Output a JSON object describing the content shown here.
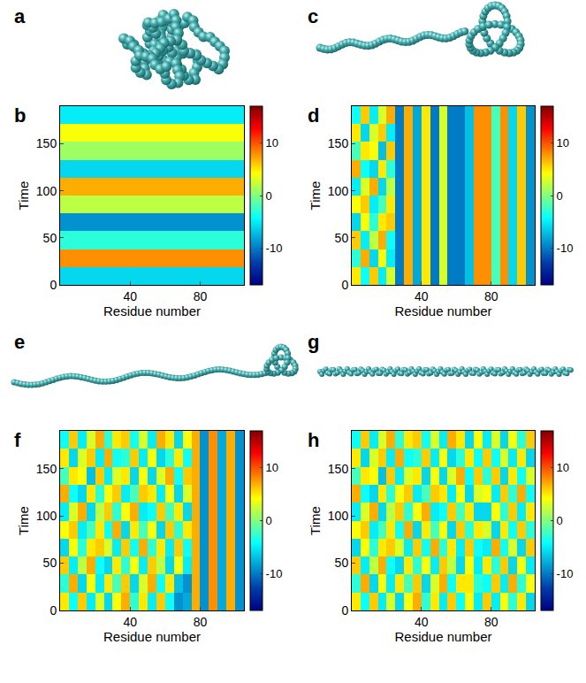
{
  "chart_data": [
    {
      "type": "heatmap",
      "annotations": [
        "a",
        "b"
      ],
      "x_label": "Residue number",
      "y_label": "Time",
      "color": "Jet",
      "x": [
        2.5,
        7.5,
        12.5,
        17.5,
        22.5,
        27.5,
        32.5,
        37.5,
        42.5,
        47.5,
        52.5,
        57.5,
        62.5,
        67.5,
        72.5,
        77.5,
        82.5,
        87.5,
        92.5,
        97.5,
        102.5
      ],
      "y": [
        9.5,
        28.5,
        47.5,
        66.5,
        85.5,
        104.5,
        123.5,
        142.5,
        161.5,
        180.5
      ],
      "z": [
        [
          -6,
          -6,
          -6,
          -6,
          -6,
          -6,
          -6,
          -6,
          -6,
          -6,
          -6,
          -6,
          -6,
          -6,
          -6,
          -6,
          -6,
          -6,
          -6,
          -6,
          -6
        ],
        [
          8,
          8,
          8,
          8,
          8,
          8,
          8,
          8,
          8,
          8,
          8,
          8,
          8,
          8,
          8,
          8,
          8,
          8,
          8,
          8,
          8
        ],
        [
          -3,
          -3,
          -3,
          -3,
          -3,
          -3,
          -3,
          -3,
          -3,
          -3,
          -3,
          -3,
          -3,
          -3,
          -3,
          -3,
          -3,
          -3,
          -3,
          -3,
          -3
        ],
        [
          -9,
          -9,
          -9,
          -9,
          -9,
          -9,
          -9,
          -9,
          -9,
          -9,
          -9,
          -9,
          -9,
          -9,
          -9,
          -9,
          -9,
          -9,
          -9,
          -9,
          -9
        ],
        [
          2,
          2,
          2,
          2,
          2,
          2,
          2,
          2,
          2,
          2,
          2,
          2,
          2,
          2,
          2,
          2,
          2,
          2,
          2,
          2,
          2
        ],
        [
          7,
          7,
          7,
          7,
          7,
          7,
          7,
          7,
          7,
          7,
          7,
          7,
          7,
          7,
          7,
          7,
          7,
          7,
          7,
          7,
          7
        ],
        [
          -6,
          -6,
          -6,
          -6,
          -6,
          -6,
          -6,
          -6,
          -6,
          -6,
          -6,
          -6,
          -6,
          -6,
          -6,
          -6,
          -6,
          -6,
          -6,
          -6,
          -6
        ],
        [
          1,
          1,
          1,
          1,
          1,
          1,
          1,
          1,
          1,
          1,
          1,
          1,
          1,
          1,
          1,
          1,
          1,
          1,
          1,
          1,
          1
        ],
        [
          4,
          4,
          4,
          4,
          4,
          4,
          4,
          4,
          4,
          4,
          4,
          4,
          4,
          4,
          4,
          4,
          4,
          4,
          4,
          4,
          4
        ],
        [
          -5,
          -5,
          -5,
          -5,
          -5,
          -5,
          -5,
          -5,
          -5,
          -5,
          -5,
          -5,
          -5,
          -5,
          -5,
          -5,
          -5,
          -5,
          -5,
          -5,
          -5
        ]
      ],
      "xlim": [
        0,
        105
      ],
      "xticks": [
        40,
        80
      ],
      "ylim": [
        0,
        190
      ],
      "yticks": [
        0,
        50,
        100,
        150
      ],
      "colorbar_range": [
        -17,
        17
      ],
      "colorbar_ticks": [
        -10,
        0,
        10
      ]
    },
    {
      "type": "heatmap",
      "annotations": [
        "c",
        "d"
      ],
      "x_label": "Residue number",
      "y_label": "Time",
      "color": "Jet",
      "x": [
        2.5,
        7.5,
        12.5,
        17.5,
        22.5,
        27.5,
        32.5,
        37.5,
        42.5,
        47.5,
        52.5,
        57.5,
        62.5,
        67.5,
        72.5,
        77.5,
        82.5,
        87.5,
        92.5,
        97.5,
        102.5
      ],
      "y": [
        9.5,
        28.5,
        47.5,
        66.5,
        85.5,
        104.5,
        123.5,
        142.5,
        161.5,
        180.5
      ],
      "z": [
        [
          5,
          -4,
          6,
          -5,
          3,
          -10,
          7,
          -8,
          5,
          -10,
          3,
          -10,
          -10,
          -7,
          8,
          8,
          -2,
          8,
          -6,
          6,
          -9
        ],
        [
          -3,
          7,
          -6,
          4,
          -5,
          -10,
          7,
          -8,
          5,
          -10,
          3,
          -10,
          -10,
          -7,
          8,
          8,
          -2,
          8,
          -6,
          6,
          -9
        ],
        [
          6,
          -5,
          2,
          7,
          -4,
          -10,
          7,
          -8,
          5,
          -10,
          3,
          -10,
          -10,
          -7,
          8,
          8,
          -2,
          8,
          -6,
          6,
          -9
        ],
        [
          -6,
          4,
          -3,
          5,
          6,
          -10,
          7,
          -8,
          5,
          -10,
          3,
          -10,
          -10,
          -7,
          8,
          8,
          -2,
          8,
          -6,
          6,
          -9
        ],
        [
          4,
          6,
          -5,
          -2,
          5,
          -10,
          7,
          -8,
          5,
          -10,
          3,
          -10,
          -10,
          -7,
          8,
          8,
          -2,
          8,
          -6,
          6,
          -9
        ],
        [
          -5,
          3,
          7,
          -6,
          2,
          -10,
          7,
          -8,
          5,
          -10,
          3,
          -10,
          -10,
          -7,
          8,
          8,
          -2,
          8,
          -6,
          6,
          -9
        ],
        [
          7,
          -4,
          -6,
          5,
          -3,
          -10,
          7,
          -8,
          5,
          -10,
          3,
          -10,
          -10,
          -7,
          8,
          8,
          -2,
          8,
          -6,
          6,
          -9
        ],
        [
          -2,
          5,
          4,
          -7,
          6,
          -10,
          7,
          -8,
          5,
          -10,
          3,
          -10,
          -10,
          -7,
          8,
          8,
          -2,
          8,
          -6,
          6,
          -9
        ],
        [
          5,
          -6,
          3,
          6,
          -5,
          -10,
          7,
          -8,
          5,
          -10,
          3,
          -10,
          -10,
          -7,
          8,
          8,
          -2,
          8,
          -6,
          6,
          -9
        ],
        [
          -4,
          6,
          -5,
          3,
          7,
          -10,
          7,
          -8,
          5,
          -10,
          3,
          -10,
          -10,
          -7,
          8,
          8,
          -2,
          8,
          -6,
          6,
          -9
        ]
      ],
      "xlim": [
        0,
        105
      ],
      "xticks": [
        40,
        80
      ],
      "ylim": [
        0,
        190
      ],
      "yticks": [
        0,
        50,
        100,
        150
      ],
      "colorbar_range": [
        -17,
        17
      ],
      "colorbar_ticks": [
        -10,
        0,
        10
      ]
    },
    {
      "type": "heatmap",
      "annotations": [
        "e",
        "f"
      ],
      "x_label": "Residue number",
      "y_label": "Time",
      "color": "Jet",
      "x": [
        2.5,
        7.5,
        12.5,
        17.5,
        22.5,
        27.5,
        32.5,
        37.5,
        42.5,
        47.5,
        52.5,
        57.5,
        62.5,
        67.5,
        72.5,
        77.5,
        82.5,
        87.5,
        92.5,
        97.5,
        102.5
      ],
      "y": [
        9.5,
        28.5,
        47.5,
        66.5,
        85.5,
        104.5,
        123.5,
        142.5,
        161.5,
        180.5
      ],
      "z": [
        [
          5,
          -4,
          6,
          -5,
          3,
          -6,
          4,
          7,
          -3,
          5,
          -5,
          6,
          -4,
          -9,
          -8,
          7,
          -9,
          8,
          -8,
          7,
          -9
        ],
        [
          -3,
          7,
          -6,
          4,
          -5,
          5,
          -2,
          6,
          -6,
          3,
          7,
          -4,
          5,
          -7,
          -9,
          7,
          -9,
          8,
          -8,
          7,
          -9
        ],
        [
          6,
          -5,
          2,
          7,
          -4,
          -6,
          5,
          -3,
          4,
          -5,
          6,
          2,
          -6,
          4,
          -5,
          7,
          -9,
          8,
          -8,
          7,
          -9
        ],
        [
          -6,
          4,
          -3,
          5,
          6,
          3,
          -5,
          6,
          -4,
          7,
          -3,
          5,
          -5,
          6,
          -4,
          7,
          -9,
          8,
          -8,
          7,
          -9
        ],
        [
          4,
          6,
          -5,
          -2,
          5,
          -4,
          7,
          -6,
          5,
          -2,
          4,
          -6,
          6,
          -3,
          5,
          7,
          -9,
          8,
          -8,
          7,
          -9
        ],
        [
          -5,
          3,
          7,
          -6,
          2,
          6,
          -3,
          4,
          7,
          -5,
          -4,
          6,
          -2,
          5,
          -6,
          7,
          -9,
          8,
          -8,
          7,
          -9
        ],
        [
          7,
          -4,
          -6,
          5,
          -3,
          4,
          6,
          -5,
          -2,
          6,
          5,
          -5,
          4,
          -6,
          3,
          7,
          -9,
          8,
          -8,
          7,
          -9
        ],
        [
          -2,
          5,
          4,
          -7,
          6,
          -5,
          3,
          5,
          -6,
          4,
          -6,
          3,
          7,
          -4,
          6,
          7,
          -9,
          8,
          -8,
          7,
          -9
        ],
        [
          5,
          -6,
          3,
          6,
          -5,
          7,
          -4,
          -3,
          6,
          -5,
          4,
          -6,
          -3,
          5,
          -4,
          7,
          -9,
          8,
          -8,
          7,
          -9
        ],
        [
          -4,
          6,
          -5,
          3,
          7,
          -3,
          5,
          6,
          -4,
          3,
          -5,
          7,
          5,
          -6,
          4,
          7,
          -9,
          8,
          -8,
          7,
          -9
        ]
      ],
      "xlim": [
        0,
        105
      ],
      "xticks": [
        40,
        80
      ],
      "ylim": [
        0,
        190
      ],
      "yticks": [
        0,
        50,
        100,
        150
      ],
      "colorbar_range": [
        -17,
        17
      ],
      "colorbar_ticks": [
        -10,
        0,
        10
      ]
    },
    {
      "type": "heatmap",
      "annotations": [
        "g",
        "h"
      ],
      "x_label": "Residue number",
      "y_label": "Time",
      "color": "Jet",
      "x": [
        2.5,
        7.5,
        12.5,
        17.5,
        22.5,
        27.5,
        32.5,
        37.5,
        42.5,
        47.5,
        52.5,
        57.5,
        62.5,
        67.5,
        72.5,
        77.5,
        82.5,
        87.5,
        92.5,
        97.5,
        102.5
      ],
      "y": [
        9.5,
        28.5,
        47.5,
        66.5,
        85.5,
        104.5,
        123.5,
        142.5,
        161.5,
        180.5
      ],
      "z": [
        [
          5,
          -4,
          6,
          -5,
          3,
          -6,
          4,
          7,
          -3,
          5,
          -5,
          6,
          -4,
          4,
          -5,
          6,
          -5,
          4,
          -3,
          5,
          -6
        ],
        [
          -3,
          7,
          -6,
          4,
          -5,
          5,
          -2,
          6,
          -6,
          3,
          7,
          -4,
          5,
          5,
          -3,
          -4,
          6,
          -5,
          7,
          -3,
          4
        ],
        [
          6,
          -5,
          2,
          7,
          -4,
          -6,
          5,
          -3,
          4,
          -5,
          6,
          2,
          -6,
          4,
          -5,
          5,
          -3,
          6,
          -6,
          4,
          -5
        ],
        [
          -6,
          4,
          -3,
          5,
          6,
          3,
          -5,
          6,
          -4,
          7,
          -3,
          5,
          -5,
          6,
          -4,
          -5,
          7,
          -4,
          3,
          -6,
          6
        ],
        [
          4,
          6,
          -5,
          -2,
          5,
          -4,
          7,
          -6,
          5,
          -2,
          4,
          -6,
          6,
          -3,
          5,
          3,
          -6,
          5,
          -4,
          6,
          -3
        ],
        [
          -5,
          3,
          7,
          -6,
          2,
          6,
          -3,
          4,
          7,
          -5,
          -4,
          6,
          -2,
          5,
          -6,
          -6,
          4,
          -3,
          6,
          -5,
          5
        ],
        [
          7,
          -4,
          -6,
          5,
          -3,
          4,
          6,
          -5,
          -2,
          6,
          5,
          -5,
          4,
          -6,
          3,
          4,
          -5,
          6,
          -3,
          7,
          -4
        ],
        [
          -2,
          5,
          4,
          -7,
          6,
          -5,
          3,
          5,
          -6,
          4,
          -6,
          3,
          7,
          -4,
          6,
          -3,
          6,
          -6,
          5,
          -4,
          3
        ],
        [
          5,
          -6,
          3,
          6,
          -5,
          7,
          -4,
          -3,
          6,
          -5,
          4,
          -6,
          -3,
          5,
          -4,
          6,
          -4,
          3,
          -5,
          5,
          -6
        ],
        [
          -4,
          6,
          -5,
          3,
          7,
          -3,
          5,
          6,
          -4,
          3,
          -5,
          7,
          5,
          -6,
          4,
          -5,
          3,
          -6,
          4,
          -3,
          6
        ]
      ],
      "xlim": [
        0,
        105
      ],
      "xticks": [
        40,
        80
      ],
      "ylim": [
        0,
        190
      ],
      "yticks": [
        0,
        50,
        100,
        150
      ],
      "colorbar_range": [
        -17,
        17
      ],
      "colorbar_ticks": [
        -10,
        0,
        10
      ]
    }
  ]
}
